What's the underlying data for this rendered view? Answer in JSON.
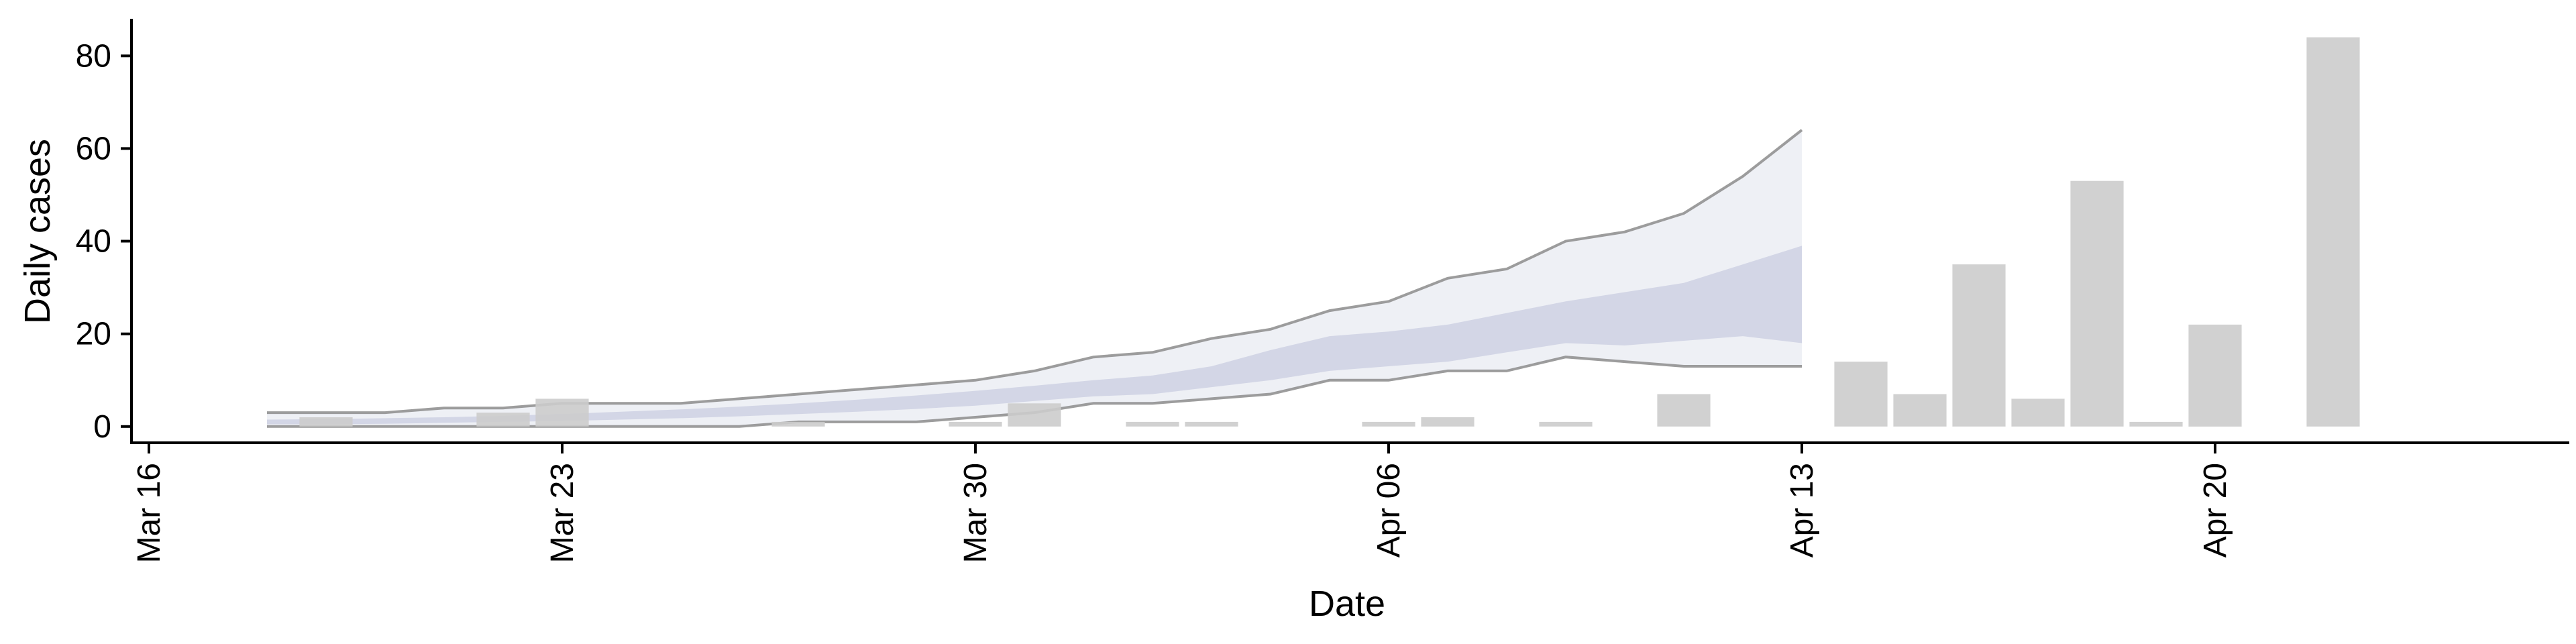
{
  "chart_data": {
    "type": "bar",
    "xlabel": "Date",
    "ylabel": "Daily cases",
    "xlim": [
      "2020-03-16",
      "2020-04-26"
    ],
    "ylim": [
      -3.5,
      88
    ],
    "x_ticks": [
      "2020-03-16",
      "2020-03-23",
      "2020-03-30",
      "2020-04-06",
      "2020-04-13",
      "2020-04-20"
    ],
    "x_tick_labels": [
      "Mar 16",
      "Mar 23",
      "Mar 30",
      "Apr 06",
      "Apr 13",
      "Apr 20"
    ],
    "y_ticks": [
      0,
      20,
      40,
      60,
      80
    ],
    "grid": false,
    "colors": {
      "bars": "#cccccc",
      "band_outer": "#eef0f5",
      "band_inner": "#d3d6e6",
      "band_lines": "#8c8c8c",
      "axis": "#000000"
    },
    "bars": {
      "x": [
        "2020-03-19",
        "2020-03-22",
        "2020-03-23",
        "2020-03-27",
        "2020-03-30",
        "2020-03-31",
        "2020-04-02",
        "2020-04-03",
        "2020-04-06",
        "2020-04-07",
        "2020-04-09",
        "2020-04-11",
        "2020-04-14",
        "2020-04-15",
        "2020-04-16",
        "2020-04-17",
        "2020-04-18",
        "2020-04-19",
        "2020-04-20",
        "2020-04-22"
      ],
      "values": [
        2,
        3,
        6,
        1,
        1,
        5,
        1,
        1,
        1,
        2,
        1,
        7,
        14,
        7,
        35,
        6,
        53,
        1,
        22,
        84
      ]
    },
    "forecast_bands": {
      "x": [
        "2020-03-18",
        "2020-03-19",
        "2020-03-20",
        "2020-03-21",
        "2020-03-22",
        "2020-03-23",
        "2020-03-24",
        "2020-03-25",
        "2020-03-26",
        "2020-03-27",
        "2020-03-28",
        "2020-03-29",
        "2020-03-30",
        "2020-03-31",
        "2020-04-01",
        "2020-04-02",
        "2020-04-03",
        "2020-04-04",
        "2020-04-05",
        "2020-04-06",
        "2020-04-07",
        "2020-04-08",
        "2020-04-09",
        "2020-04-10",
        "2020-04-11",
        "2020-04-12",
        "2020-04-13"
      ],
      "outer_lower": [
        0,
        0,
        0,
        0,
        0,
        0,
        0,
        0,
        0,
        1,
        1,
        1,
        2,
        3,
        5,
        5,
        6,
        7,
        10,
        10,
        12,
        12,
        15,
        14,
        13,
        13,
        13
      ],
      "outer_upper": [
        3,
        3,
        3,
        4,
        4,
        5,
        5,
        5,
        6,
        7,
        8,
        9,
        10,
        12,
        15,
        16,
        19,
        21,
        25,
        27,
        32,
        34,
        40,
        42,
        46,
        54,
        64
      ],
      "inner_lower": [
        0.5,
        0.5,
        0.6,
        0.8,
        1,
        1.2,
        1.5,
        1.8,
        2.2,
        2.7,
        3.2,
        3.8,
        4.5,
        5.5,
        6.5,
        7,
        8.5,
        10,
        12,
        13,
        14,
        16,
        18,
        17.5,
        18.5,
        19.5,
        18
      ],
      "inner_upper": [
        1.5,
        1.6,
        1.8,
        2,
        2.3,
        2.7,
        3.2,
        3.7,
        4.3,
        5,
        5.8,
        6.7,
        7.7,
        8.8,
        10,
        11,
        13,
        16.5,
        19.5,
        20.5,
        22,
        24.5,
        27,
        29,
        31,
        35,
        39
      ]
    }
  }
}
